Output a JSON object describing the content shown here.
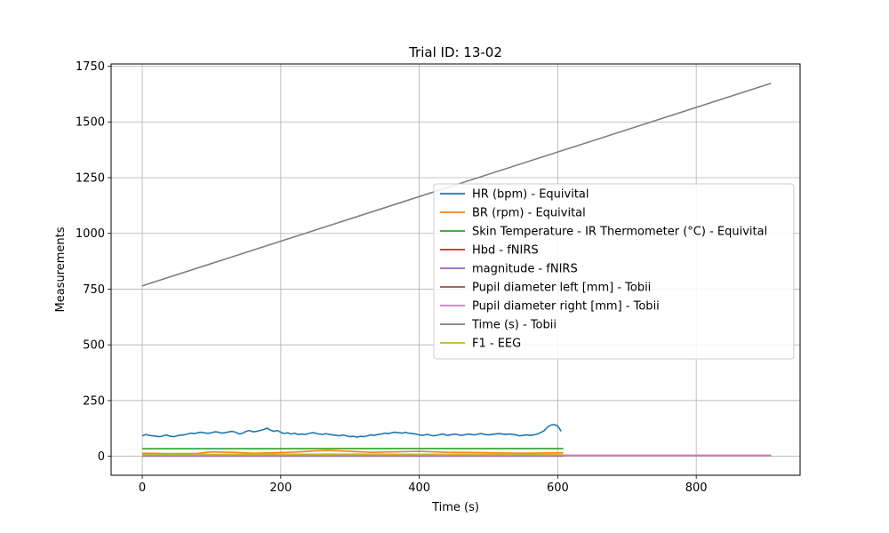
{
  "chart_data": {
    "type": "line",
    "title": "Trial ID: 13-02",
    "xlabel": "Time (s)",
    "ylabel": "Measurements",
    "xlim": [
      -45,
      950
    ],
    "ylim": [
      -85,
      1760
    ],
    "xticks": [
      0,
      200,
      400,
      600,
      800
    ],
    "yticks": [
      0,
      250,
      500,
      750,
      1000,
      1250,
      1500,
      1750
    ],
    "grid": true,
    "legend_position": "center-right",
    "series": [
      {
        "name": "HR (bpm) - Equivital",
        "color": "#1f77b4",
        "x": [
          0,
          5,
          10,
          15,
          20,
          25,
          30,
          35,
          40,
          45,
          50,
          55,
          60,
          65,
          70,
          75,
          80,
          85,
          90,
          95,
          100,
          105,
          110,
          115,
          120,
          125,
          130,
          135,
          140,
          145,
          150,
          155,
          160,
          165,
          170,
          175,
          180,
          185,
          190,
          195,
          200,
          205,
          210,
          215,
          220,
          225,
          230,
          235,
          240,
          245,
          250,
          255,
          260,
          265,
          270,
          275,
          280,
          285,
          290,
          295,
          300,
          305,
          310,
          315,
          320,
          325,
          330,
          335,
          340,
          345,
          350,
          355,
          360,
          365,
          370,
          375,
          380,
          385,
          390,
          395,
          400,
          405,
          410,
          415,
          420,
          425,
          430,
          435,
          440,
          445,
          450,
          455,
          460,
          465,
          470,
          475,
          480,
          485,
          490,
          495,
          500,
          505,
          510,
          515,
          520,
          525,
          530,
          535,
          540,
          545,
          550,
          555,
          560,
          565,
          570,
          575,
          580,
          585,
          590,
          595,
          600,
          605
        ],
        "y": [
          92,
          98,
          94,
          92,
          90,
          88,
          92,
          96,
          90,
          88,
          92,
          95,
          96,
          100,
          104,
          102,
          106,
          108,
          105,
          103,
          106,
          110,
          108,
          104,
          106,
          110,
          112,
          108,
          100,
          104,
          112,
          116,
          110,
          112,
          116,
          120,
          126,
          118,
          112,
          116,
          108,
          102,
          106,
          100,
          104,
          98,
          100,
          98,
          102,
          106,
          104,
          100,
          98,
          102,
          98,
          96,
          94,
          92,
          96,
          92,
          88,
          90,
          86,
          90,
          88,
          92,
          96,
          94,
          98,
          100,
          104,
          102,
          106,
          108,
          106,
          104,
          108,
          104,
          102,
          100,
          96,
          94,
          98,
          96,
          92,
          94,
          98,
          100,
          94,
          96,
          100,
          98,
          94,
          96,
          100,
          98,
          96,
          100,
          102,
          98,
          96,
          98,
          100,
          102,
          100,
          98,
          100,
          98,
          96,
          92,
          94,
          96,
          94,
          96,
          100,
          106,
          114,
          130,
          140,
          142,
          136,
          112
        ]
      },
      {
        "name": "BR (rpm) - Equivital",
        "color": "#ff7f0e",
        "x": [
          0,
          40,
          80,
          100,
          130,
          160,
          190,
          220,
          250,
          270,
          300,
          330,
          360,
          400,
          440,
          480,
          520,
          560,
          600,
          608
        ],
        "y": [
          14,
          12,
          13,
          20,
          18,
          14,
          16,
          19,
          24,
          26,
          22,
          18,
          20,
          22,
          18,
          17,
          15,
          14,
          16,
          16
        ]
      },
      {
        "name": "Skin Temperature - IR Thermometer (°C) - Equivital",
        "color": "#2ca02c",
        "x": [
          0,
          100,
          200,
          300,
          400,
          500,
          608
        ],
        "y": [
          34,
          34,
          34,
          35,
          35,
          35,
          35
        ]
      },
      {
        "name": "Hbd - fNIRS",
        "color": "#d62728",
        "x": [
          0,
          150,
          300,
          450,
          608
        ],
        "y": [
          3,
          2,
          4,
          3,
          3
        ]
      },
      {
        "name": "magnitude - fNIRS",
        "color": "#9467bd",
        "x": [
          0,
          150,
          300,
          450,
          608
        ],
        "y": [
          1,
          1,
          1,
          1,
          1
        ]
      },
      {
        "name": "Pupil diameter left [mm] - Tobii",
        "color": "#8c564b",
        "x": [
          0,
          300,
          600,
          908
        ],
        "y": [
          4,
          4,
          4,
          4
        ]
      },
      {
        "name": "Pupil diameter right [mm] - Tobii",
        "color": "#e377c2",
        "x": [
          0,
          300,
          600,
          908
        ],
        "y": [
          5,
          5,
          5,
          5
        ]
      },
      {
        "name": "Time (s) - Tobii",
        "color": "#7f7f7f",
        "x": [
          0,
          908
        ],
        "y": [
          765,
          1673
        ]
      },
      {
        "name": "F1 - EEG",
        "color": "#bcbd22",
        "x": [
          0,
          150,
          300,
          450,
          608
        ],
        "y": [
          8,
          9,
          10,
          9,
          8
        ]
      }
    ]
  }
}
